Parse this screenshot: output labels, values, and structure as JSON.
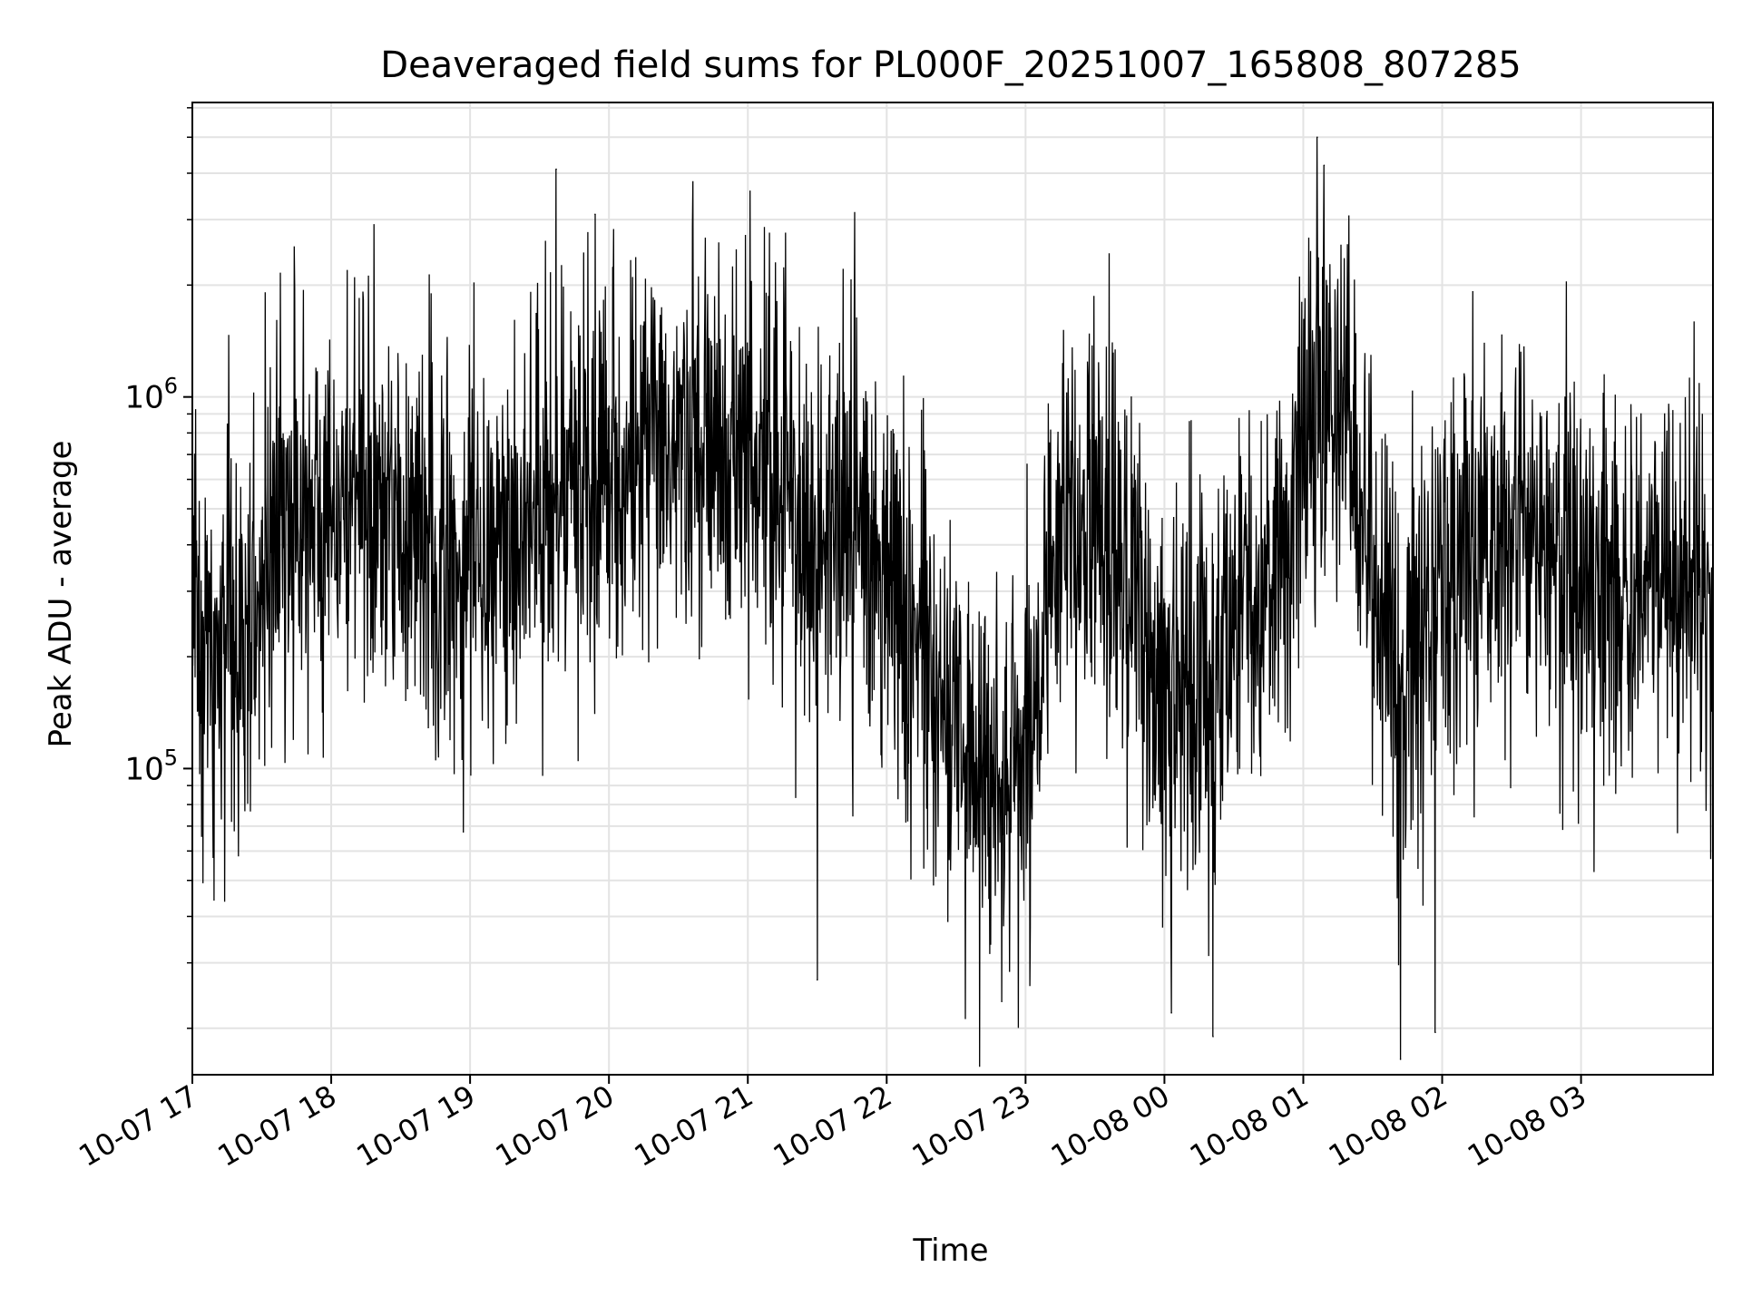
{
  "chart_data": {
    "type": "line",
    "title": "Deaveraged field sums for PL000F_20251007_165808_807285",
    "xlabel": "Time",
    "ylabel": "Peak ADU - average",
    "yscale": "log",
    "ylim": [
      15000,
      6200000
    ],
    "xlim_hours": [
      0,
      10.95
    ],
    "grid": true,
    "x_ticks": [
      {
        "label": "10-07 17",
        "hour": 0
      },
      {
        "label": "10-07 18",
        "hour": 1
      },
      {
        "label": "10-07 19",
        "hour": 2
      },
      {
        "label": "10-07 20",
        "hour": 3
      },
      {
        "label": "10-07 21",
        "hour": 4
      },
      {
        "label": "10-07 22",
        "hour": 5
      },
      {
        "label": "10-07 23",
        "hour": 6
      },
      {
        "label": "10-08 00",
        "hour": 7
      },
      {
        "label": "10-08 01",
        "hour": 8
      },
      {
        "label": "10-08 02",
        "hour": 9
      },
      {
        "label": "10-08 03",
        "hour": 10
      }
    ],
    "y_ticks": [
      {
        "base": "10",
        "exp": "5",
        "value": 100000
      },
      {
        "base": "10",
        "exp": "6",
        "value": 1000000
      }
    ],
    "series": [
      {
        "name": "Peak ADU - average",
        "color": "#000000",
        "level_profile": {
          "hours": [
            0,
            0.3,
            0.6,
            1.2,
            1.8,
            2.4,
            3.0,
            3.6,
            4.2,
            4.5,
            4.8,
            5.1,
            5.4,
            5.7,
            6.0,
            6.3,
            6.6,
            7.0,
            7.4,
            7.8,
            8.2,
            8.5,
            8.7,
            9.0,
            9.5,
            10.0,
            10.5,
            10.95
          ],
          "median": [
            250000,
            180000,
            450000,
            550000,
            350000,
            500000,
            600000,
            700000,
            650000,
            400000,
            500000,
            280000,
            150000,
            90000,
            110000,
            450000,
            500000,
            140000,
            180000,
            400000,
            1200000,
            300000,
            220000,
            300000,
            450000,
            350000,
            300000,
            280000
          ]
        },
        "notable_peaks": [
          {
            "hour": 2.62,
            "value": 4100000
          },
          {
            "hour": 2.9,
            "value": 3100000
          },
          {
            "hour": 8.1,
            "value": 5000000
          },
          {
            "hour": 8.15,
            "value": 4200000
          }
        ],
        "notable_troughs": [
          {
            "hour": 4.5,
            "value": 27000
          },
          {
            "hour": 7.05,
            "value": 22000
          },
          {
            "hour": 7.35,
            "value": 19000
          },
          {
            "hour": 8.7,
            "value": 16500
          },
          {
            "hour": 8.95,
            "value": 19500
          }
        ]
      }
    ]
  }
}
